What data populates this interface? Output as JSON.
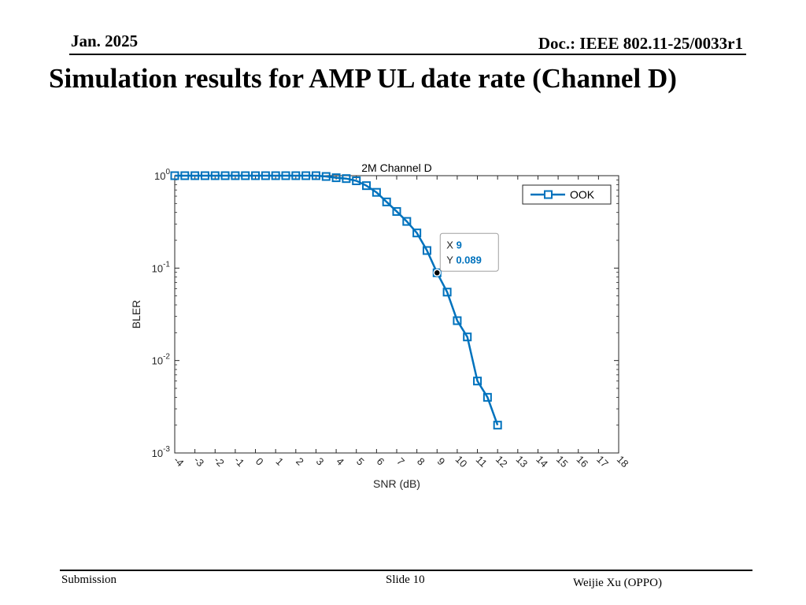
{
  "header": {
    "date": "Jan. 2025",
    "doc": "Doc.: IEEE 802.11-25/0033r1"
  },
  "slide_title": "Simulation results for AMP UL date rate (Channel D)",
  "footer": {
    "left": "Submission",
    "center": "Slide 10",
    "right": "Weijie Xu (OPPO)"
  },
  "colors": {
    "series": "#0072BD",
    "datatip_value": "#0072BD"
  },
  "chart_data": {
    "type": "line",
    "title": "2M Channel D",
    "xlabel": "SNR (dB)",
    "ylabel": "BLER",
    "yscale": "log",
    "xlim": [
      -4,
      18
    ],
    "ylim": [
      0.001,
      1
    ],
    "x_ticks": [
      "-4",
      "-3",
      "-2",
      "-1",
      "0",
      "1",
      "2",
      "3",
      "4",
      "5",
      "6",
      "7",
      "8",
      "9",
      "10",
      "11",
      "12",
      "13",
      "14",
      "15",
      "16",
      "17",
      "18"
    ],
    "y_ticks": [
      {
        "base": "10",
        "exp": "0"
      },
      {
        "base": "10",
        "exp": "-1"
      },
      {
        "base": "10",
        "exp": "-2"
      },
      {
        "base": "10",
        "exp": "-3"
      }
    ],
    "legend_position": "top-right",
    "grid": false,
    "series": [
      {
        "name": "OOK",
        "marker": "square",
        "x": [
          -4,
          -3.5,
          -3,
          -2.5,
          -2,
          -1.5,
          -1,
          -0.5,
          0,
          0.5,
          1,
          1.5,
          2,
          2.5,
          3,
          3.5,
          4,
          4.5,
          5,
          5.5,
          6,
          6.5,
          7,
          7.5,
          8,
          8.5,
          9,
          9.5,
          10,
          10.5,
          11,
          11.5,
          12
        ],
        "y": [
          1,
          1,
          1,
          1,
          1,
          1,
          1,
          1,
          1,
          1,
          1,
          1,
          1,
          1,
          1,
          0.98,
          0.95,
          0.93,
          0.88,
          0.78,
          0.66,
          0.52,
          0.41,
          0.32,
          0.24,
          0.155,
          0.089,
          0.055,
          0.027,
          0.018,
          0.006,
          0.004,
          0.002
        ]
      }
    ],
    "datatip": {
      "x": 9,
      "y": 0.089,
      "x_label": "X",
      "y_label": "Y",
      "x_text": "9",
      "y_text": "0.089"
    }
  }
}
